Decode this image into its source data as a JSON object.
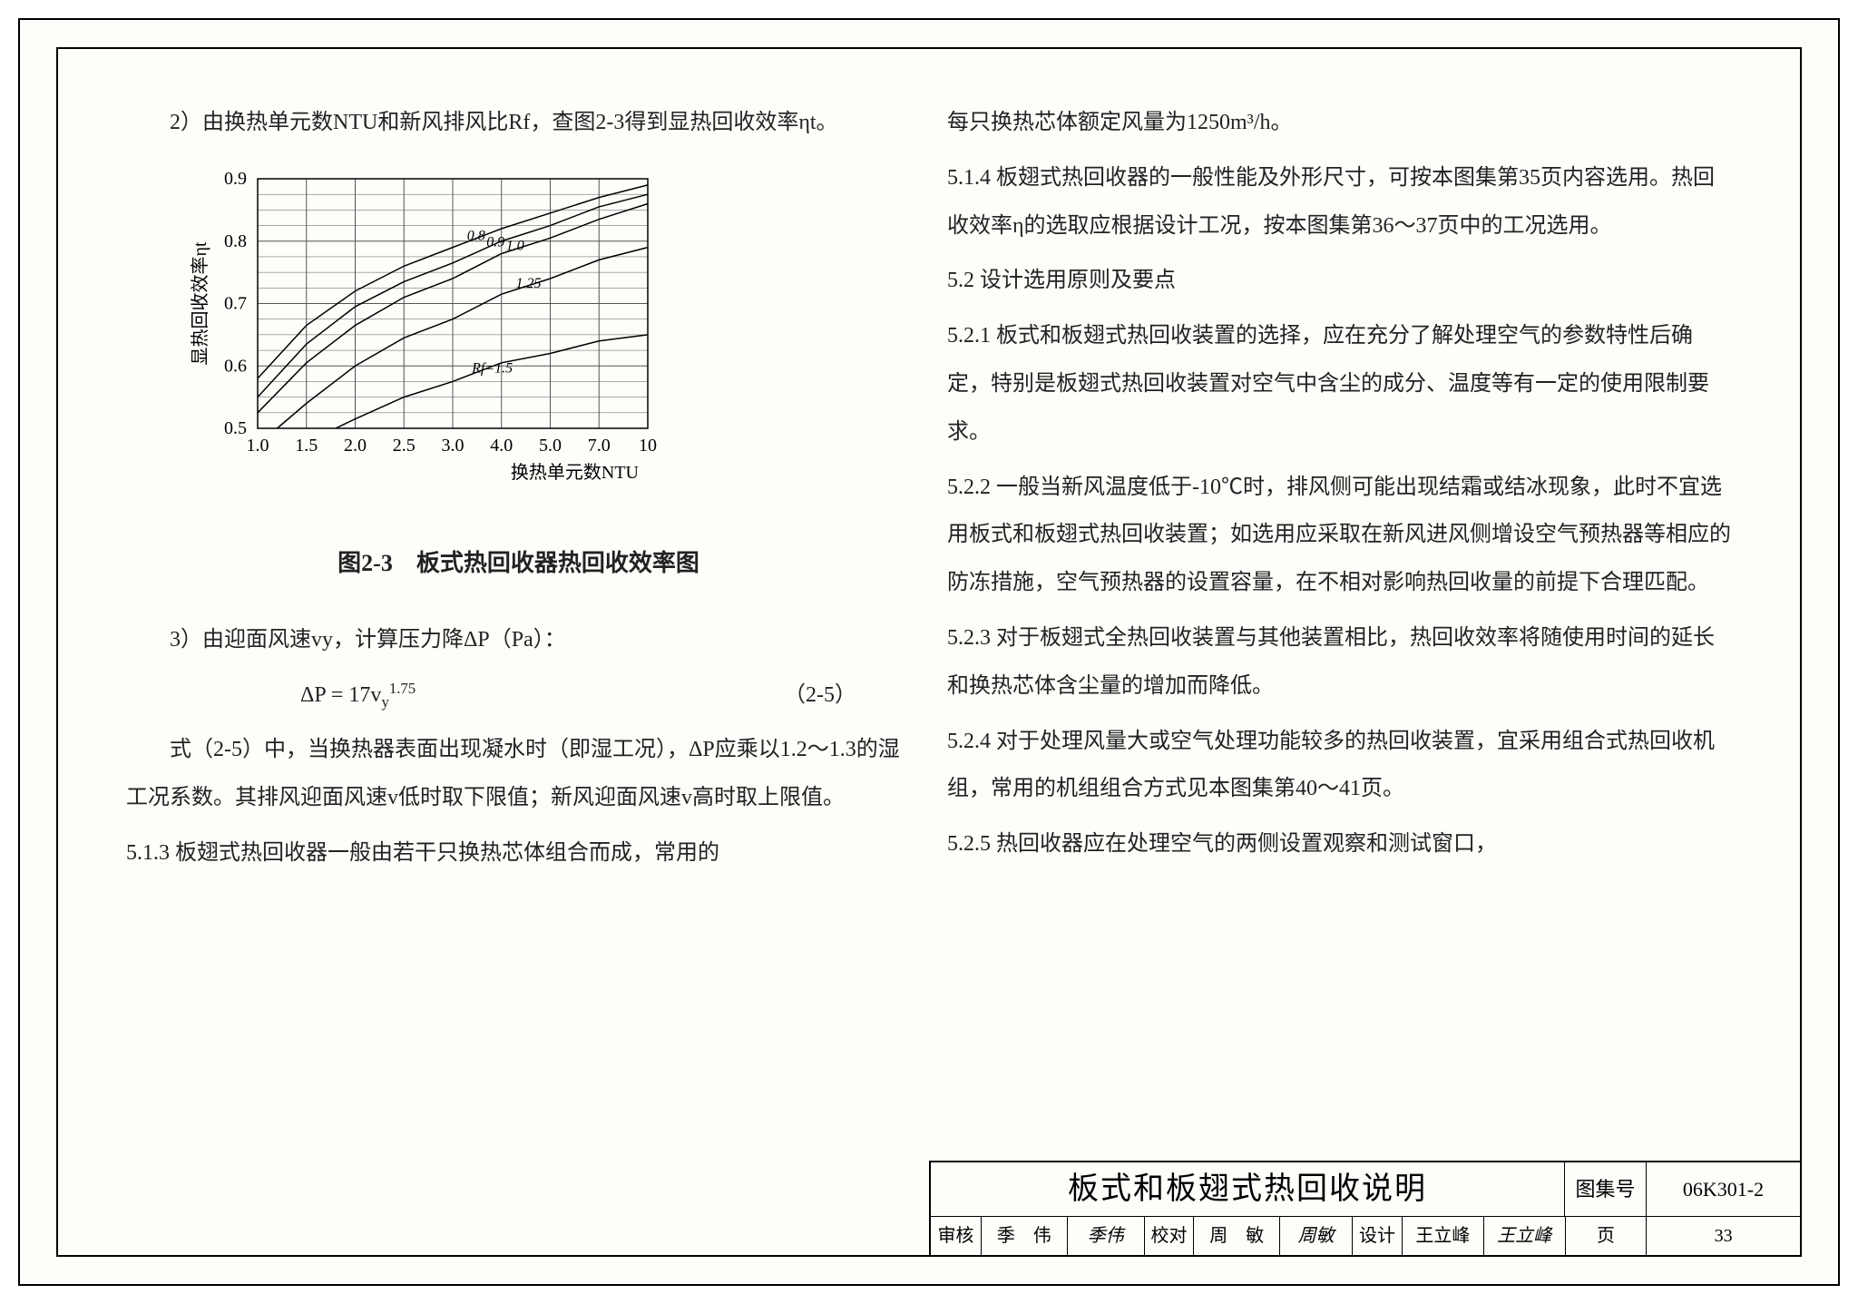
{
  "left": {
    "p1": "2）由换热单元数NTU和新风排风比Rf，查图2-3得到显热回收效率ηt。",
    "chart": {
      "type": "line",
      "ylabel": "显热回收效率ηt",
      "xlabel": "换热单元数NTU",
      "caption": "图2-3　板式热回收器热回收效率图",
      "xlim": [
        1.0,
        10.0
      ],
      "ylim": [
        0.5,
        0.9
      ],
      "yticks": [
        0.5,
        0.6,
        0.7,
        0.8,
        0.9
      ],
      "xticks": [
        1.0,
        1.5,
        2.0,
        2.5,
        3.0,
        4.0,
        5.0,
        7.0,
        10
      ],
      "grid_color": "#555555",
      "line_color": "#000000",
      "line_width": 1.5,
      "series": [
        {
          "label": "0.8",
          "points": [
            [
              1.0,
              0.58
            ],
            [
              1.5,
              0.665
            ],
            [
              2.0,
              0.72
            ],
            [
              2.5,
              0.76
            ],
            [
              3.0,
              0.79
            ],
            [
              4.0,
              0.82
            ],
            [
              5.0,
              0.845
            ],
            [
              7.0,
              0.87
            ],
            [
              10,
              0.89
            ]
          ]
        },
        {
          "label": "0.9",
          "points": [
            [
              1.0,
              0.55
            ],
            [
              1.5,
              0.635
            ],
            [
              2.0,
              0.695
            ],
            [
              2.5,
              0.735
            ],
            [
              3.0,
              0.765
            ],
            [
              4.0,
              0.8
            ],
            [
              5.0,
              0.825
            ],
            [
              7.0,
              0.855
            ],
            [
              10,
              0.875
            ]
          ]
        },
        {
          "label": "1.0",
          "points": [
            [
              1.0,
              0.525
            ],
            [
              1.5,
              0.605
            ],
            [
              2.0,
              0.665
            ],
            [
              2.5,
              0.71
            ],
            [
              3.0,
              0.74
            ],
            [
              4.0,
              0.78
            ],
            [
              5.0,
              0.805
            ],
            [
              7.0,
              0.835
            ],
            [
              10,
              0.86
            ]
          ]
        },
        {
          "label": "1.25",
          "points": [
            [
              1.2,
              0.5
            ],
            [
              1.5,
              0.54
            ],
            [
              2.0,
              0.6
            ],
            [
              2.5,
              0.645
            ],
            [
              3.0,
              0.675
            ],
            [
              4.0,
              0.715
            ],
            [
              5.0,
              0.74
            ],
            [
              7.0,
              0.77
            ],
            [
              10,
              0.79
            ]
          ]
        },
        {
          "label": "Rf=1.5",
          "points": [
            [
              1.8,
              0.5
            ],
            [
              2.0,
              0.515
            ],
            [
              2.5,
              0.55
            ],
            [
              3.0,
              0.575
            ],
            [
              4.0,
              0.605
            ],
            [
              5.0,
              0.62
            ],
            [
              7.0,
              0.64
            ],
            [
              10,
              0.65
            ]
          ]
        }
      ]
    },
    "p2": "3）由迎面风速vy，计算压力降ΔP（Pa）：",
    "eq": "ΔP = 17vy^1.75",
    "eq_num": "（2-5）",
    "p3": "式（2-5）中，当换热器表面出现凝水时（即湿工况），ΔP应乘以1.2～1.3的湿工况系数。其排风迎面风速v低时取下限值；新风迎面风速v高时取上限值。",
    "p4": "5.1.3 板翅式热回收器一般由若干只换热芯体组合而成，常用的"
  },
  "right": {
    "p1": "每只换热芯体额定风量为1250m³/h。",
    "p2": "5.1.4 板翅式热回收器的一般性能及外形尺寸，可按本图集第35页内容选用。热回收效率η的选取应根据设计工况，按本图集第36～37页中的工况选用。",
    "p3": "5.2 设计选用原则及要点",
    "p4": "5.2.1 板式和板翅式热回收装置的选择，应在充分了解处理空气的参数特性后确定，特别是板翅式热回收装置对空气中含尘的成分、温度等有一定的使用限制要求。",
    "p5": "5.2.2 一般当新风温度低于-10℃时，排风侧可能出现结霜或结冰现象，此时不宜选用板式和板翅式热回收装置；如选用应采取在新风进风侧增设空气预热器等相应的防冻措施，空气预热器的设置容量，在不相对影响热回收量的前提下合理匹配。",
    "p6": "5.2.3 对于板翅式全热回收装置与其他装置相比，热回收效率将随使用时间的延长和换热芯体含尘量的增加而降低。",
    "p7": "5.2.4 对于处理风量大或空气处理功能较多的热回收装置，宜采用组合式热回收机组，常用的机组组合方式见本图集第40～41页。",
    "p8": "5.2.5 热回收器应在处理空气的两侧设置观察和测试窗口，"
  },
  "titleblock": {
    "title": "板式和板翅式热回收说明",
    "tujihao_label": "图集号",
    "tujihao": "06K301-2",
    "ye_label": "页",
    "page": "33",
    "shenhe_label": "审核",
    "shenhe_name": "季　伟",
    "shenhe_sig": "季伟",
    "jiaodui_label": "校对",
    "jiaodui_name": "周　敏",
    "jiaodui_sig": "周敏",
    "sheji_label": "设计",
    "sheji_name": "王立峰",
    "sheji_sig": "王立峰"
  }
}
